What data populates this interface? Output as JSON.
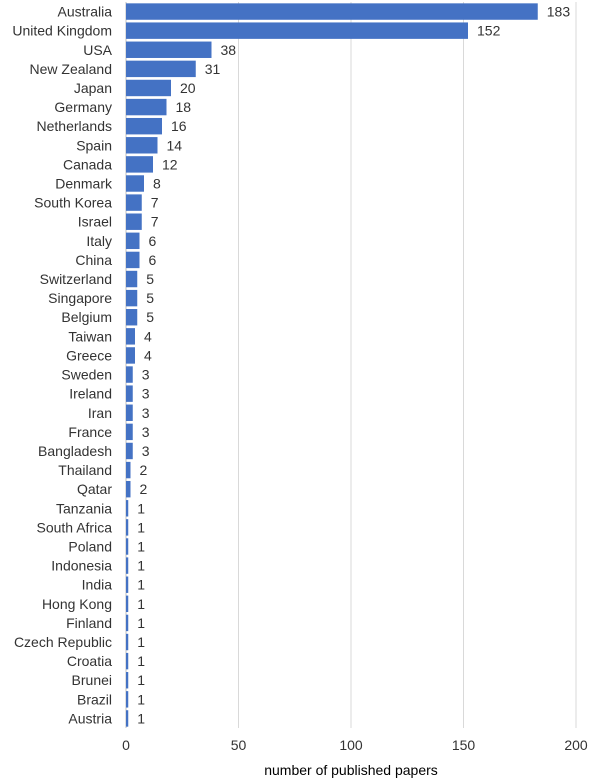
{
  "chart_data": {
    "type": "bar",
    "orientation": "horizontal",
    "categories": [
      "Australia",
      "United Kingdom",
      "USA",
      "New Zealand",
      "Japan",
      "Germany",
      "Netherlands",
      "Spain",
      "Canada",
      "Denmark",
      "South Korea",
      "Israel",
      "Italy",
      "China",
      "Switzerland",
      "Singapore",
      "Belgium",
      "Taiwan",
      "Greece",
      "Sweden",
      "Ireland",
      "Iran",
      "France",
      "Bangladesh",
      "Thailand",
      "Qatar",
      "Tanzania",
      "South Africa",
      "Poland",
      "Indonesia",
      "India",
      "Hong Kong",
      "Finland",
      "Czech Republic",
      "Croatia",
      "Brunei",
      "Brazil",
      "Austria"
    ],
    "values": [
      183,
      152,
      38,
      31,
      20,
      18,
      16,
      14,
      12,
      8,
      7,
      7,
      6,
      6,
      5,
      5,
      5,
      4,
      4,
      3,
      3,
      3,
      3,
      3,
      2,
      2,
      1,
      1,
      1,
      1,
      1,
      1,
      1,
      1,
      1,
      1,
      1,
      1
    ],
    "xlabel": "number of published papers",
    "ylabel": "",
    "title": "",
    "xlim": [
      0,
      200
    ],
    "xticks": [
      0,
      50,
      100,
      150,
      200
    ],
    "grid": "vertical",
    "legend": "none",
    "bar_color": "#4472C4",
    "grid_color": "#d9d9d9",
    "axis_color": "#bfbfbf",
    "text_color": "#333333"
  }
}
